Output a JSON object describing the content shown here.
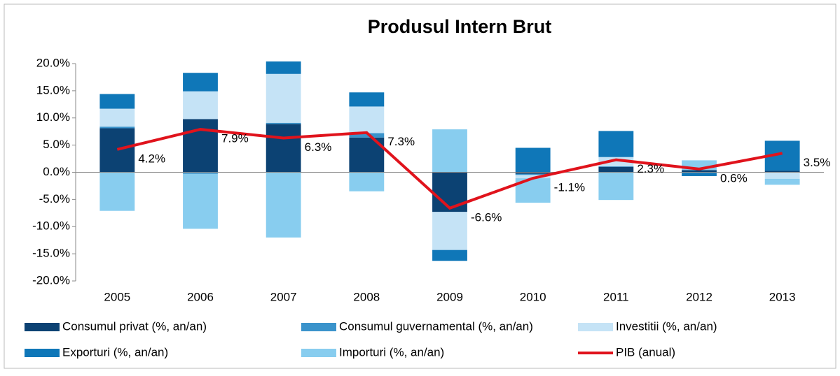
{
  "chart_data": {
    "type": "bar",
    "stacked": true,
    "title": "Produsul Intern Brut",
    "categories": [
      "2005",
      "2006",
      "2007",
      "2008",
      "2009",
      "2010",
      "2011",
      "2012",
      "2013"
    ],
    "series": [
      {
        "name": "Consumul privat (%, an/an)",
        "color": "#0c4273",
        "values": [
          8.1,
          9.8,
          8.9,
          6.4,
          -7.3,
          -0.3,
          1.0,
          0.4,
          0.3
        ]
      },
      {
        "name": "Consumul guvernamental (%, an/an)",
        "color": "#3a93cb",
        "values": [
          0.3,
          -0.3,
          0.2,
          0.8,
          0.0,
          -0.2,
          0.1,
          -0.1,
          0.0
        ]
      },
      {
        "name": "Investitii (%, an/an)",
        "color": "#c5e3f6",
        "values": [
          3.3,
          5.1,
          9.0,
          4.9,
          -7.0,
          -0.6,
          1.7,
          0.0,
          -1.2
        ]
      },
      {
        "name": "Exporturi (%, an/an)",
        "color": "#0f77b8",
        "values": [
          2.7,
          3.4,
          2.3,
          2.6,
          -2.0,
          4.5,
          4.8,
          -0.6,
          5.5
        ]
      },
      {
        "name": "Importuri (%, an/an)",
        "color": "#88cdef",
        "values": [
          -7.1,
          -10.1,
          -12.0,
          -3.5,
          7.9,
          -4.5,
          -5.1,
          1.8,
          -1.1
        ]
      },
      {
        "name": "PIB (anual)",
        "type": "line",
        "color": "#e0131c",
        "values": [
          4.2,
          7.9,
          6.3,
          7.3,
          -6.6,
          -1.1,
          2.3,
          0.6,
          3.5
        ],
        "value_labels": [
          "4.2%",
          "7.9%",
          "6.3%",
          "7.3%",
          "-6.6%",
          "-1.1%",
          "2.3%",
          "0.6%",
          "3.5%"
        ]
      }
    ],
    "ylim": [
      -20,
      20
    ],
    "yticks": [
      {
        "value": -20,
        "label": "-20.0%"
      },
      {
        "value": -15,
        "label": "-15.0%"
      },
      {
        "value": -10,
        "label": "-10.0%"
      },
      {
        "value": -5,
        "label": "-5.0%"
      },
      {
        "value": 0,
        "label": "0.0%"
      },
      {
        "value": 5,
        "label": "5.0%"
      },
      {
        "value": 10,
        "label": "10.0%"
      },
      {
        "value": 15,
        "label": "15.0%"
      },
      {
        "value": 20,
        "label": "20.0%"
      }
    ]
  }
}
